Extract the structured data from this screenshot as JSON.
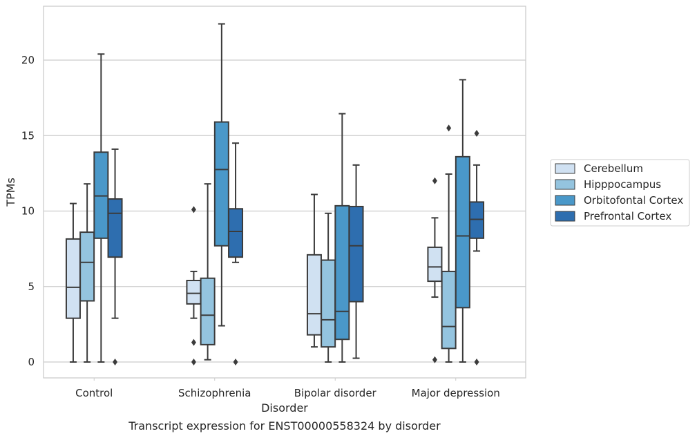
{
  "caption": "Transcript expression for ENST00000558324 by disorder",
  "chart_data": {
    "type": "box",
    "xlabel": "Disorder",
    "ylabel": "TPMs",
    "ylim": [
      -1.1,
      23.6
    ],
    "yticks": [
      0,
      5,
      10,
      15,
      20
    ],
    "grid": "horizontal",
    "legend_position": "right",
    "categories": [
      "Control",
      "Schizophrenia",
      "Bipolar disorder",
      "Major depression"
    ],
    "series": [
      {
        "name": "Cerebellum",
        "color": "#d0e1f2",
        "boxes": [
          {
            "whisker_low": 0,
            "q1": 2.9,
            "median": 4.95,
            "q3": 8.15,
            "whisker_high": 10.5,
            "outliers": []
          },
          {
            "whisker_low": 2.9,
            "q1": 3.85,
            "median": 4.55,
            "q3": 5.4,
            "whisker_high": 6.0,
            "outliers": [
              10.1,
              1.3,
              0.0
            ]
          },
          {
            "whisker_low": 1.0,
            "q1": 1.8,
            "median": 3.2,
            "q3": 7.1,
            "whisker_high": 11.1,
            "outliers": []
          },
          {
            "whisker_low": 4.3,
            "q1": 5.35,
            "median": 6.3,
            "q3": 7.6,
            "whisker_high": 9.55,
            "outliers": [
              12.0,
              0.15
            ]
          }
        ]
      },
      {
        "name": "Hipppocampus",
        "color": "#94c4df",
        "boxes": [
          {
            "whisker_low": 0,
            "q1": 4.05,
            "median": 6.6,
            "q3": 8.6,
            "whisker_high": 11.8,
            "outliers": []
          },
          {
            "whisker_low": 0.15,
            "q1": 1.15,
            "median": 3.1,
            "q3": 5.55,
            "whisker_high": 11.8,
            "outliers": []
          },
          {
            "whisker_low": 0,
            "q1": 1.0,
            "median": 2.8,
            "q3": 6.75,
            "whisker_high": 9.85,
            "outliers": []
          },
          {
            "whisker_low": 0,
            "q1": 0.9,
            "median": 2.35,
            "q3": 6.0,
            "whisker_high": 12.45,
            "outliers": [
              15.5
            ]
          }
        ]
      },
      {
        "name": "Orbitofontal Cortex",
        "color": "#4a98c9",
        "boxes": [
          {
            "whisker_low": 0,
            "q1": 8.2,
            "median": 11.0,
            "q3": 13.9,
            "whisker_high": 20.4,
            "outliers": []
          },
          {
            "whisker_low": 2.4,
            "q1": 7.7,
            "median": 12.75,
            "q3": 15.9,
            "whisker_high": 22.4,
            "outliers": []
          },
          {
            "whisker_low": 0,
            "q1": 1.5,
            "median": 3.35,
            "q3": 10.35,
            "whisker_high": 16.45,
            "outliers": []
          },
          {
            "whisker_low": 0,
            "q1": 3.6,
            "median": 8.35,
            "q3": 13.6,
            "whisker_high": 18.7,
            "outliers": []
          }
        ]
      },
      {
        "name": "Prefrontal Cortex",
        "color": "#2e6eaf",
        "boxes": [
          {
            "whisker_low": 2.9,
            "q1": 6.95,
            "median": 9.85,
            "q3": 10.8,
            "whisker_high": 14.1,
            "outliers": [
              0.0
            ]
          },
          {
            "whisker_low": 6.6,
            "q1": 6.95,
            "median": 8.65,
            "q3": 10.15,
            "whisker_high": 14.5,
            "outliers": [
              0.0
            ]
          },
          {
            "whisker_low": 0.25,
            "q1": 4.0,
            "median": 7.7,
            "q3": 10.3,
            "whisker_high": 13.05,
            "outliers": []
          },
          {
            "whisker_low": 7.35,
            "q1": 8.2,
            "median": 9.45,
            "q3": 10.6,
            "whisker_high": 13.05,
            "outliers": [
              15.15,
              0.0
            ]
          }
        ]
      }
    ]
  }
}
